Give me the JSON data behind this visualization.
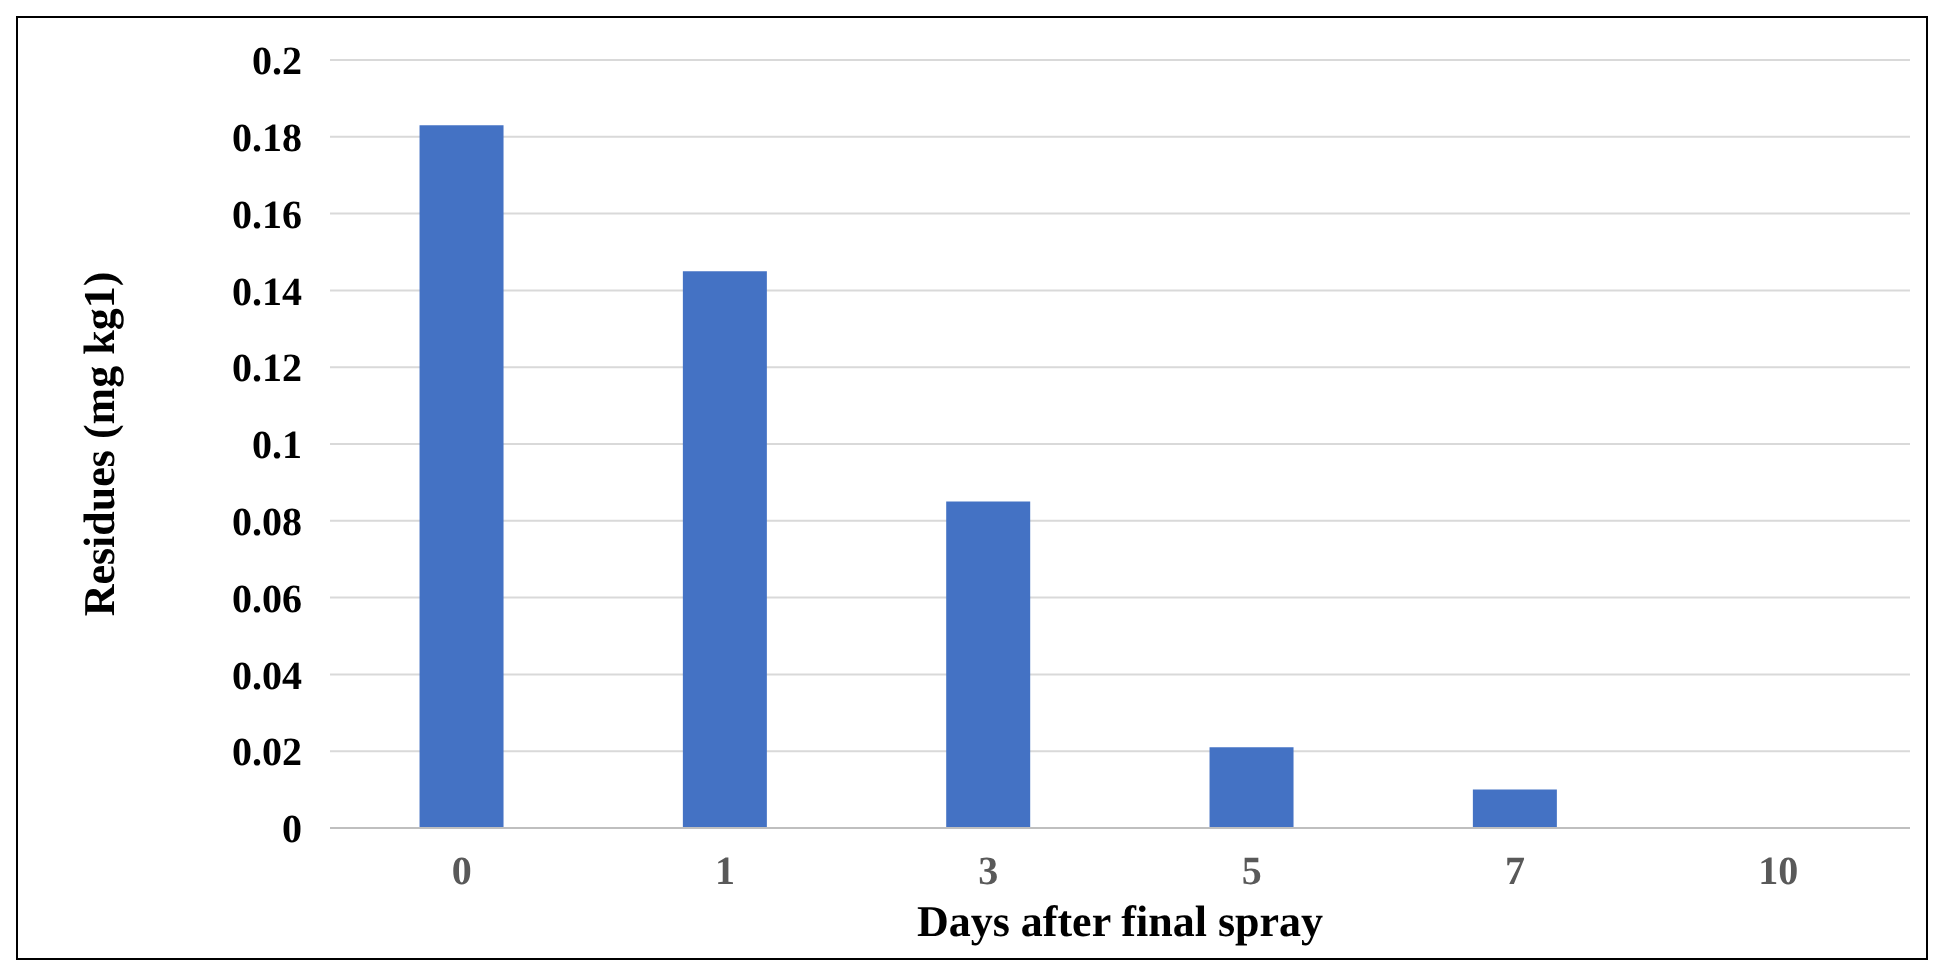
{
  "chart_data": {
    "type": "bar",
    "xlabel": "Days after final spray",
    "ylabel": "Residues (mg kg1)",
    "categories": [
      "0",
      "1",
      "3",
      "5",
      "7",
      "10"
    ],
    "values": [
      0.183,
      0.145,
      0.085,
      0.021,
      0.01,
      0
    ],
    "color": "#4472c4",
    "ylim": [
      0,
      0.2
    ],
    "yticks": [
      0,
      0.02,
      0.04,
      0.06,
      0.08,
      0.1,
      0.12,
      0.14,
      0.16,
      0.18,
      0.2
    ],
    "grid": "y"
  }
}
